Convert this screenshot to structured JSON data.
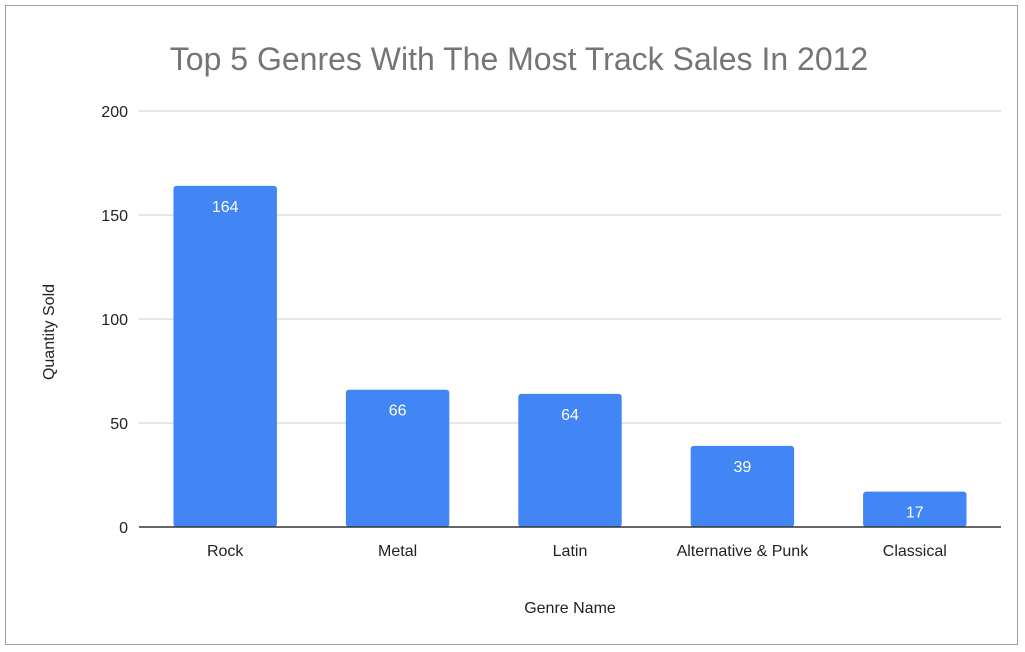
{
  "chart_data": {
    "type": "bar",
    "title": "Top 5 Genres With The Most Track Sales In 2012",
    "xlabel": "Genre Name",
    "ylabel": "Quantity Sold",
    "categories": [
      "Rock",
      "Metal",
      "Latin",
      "Alternative & Punk",
      "Classical"
    ],
    "values": [
      164,
      66,
      64,
      39,
      17
    ],
    "data_labels": [
      "164",
      "66",
      "64",
      "39",
      "17"
    ],
    "ylim": [
      0,
      200
    ],
    "yticks": [
      0,
      50,
      100,
      150,
      200
    ],
    "ytick_labels": [
      "0",
      "50",
      "100",
      "150",
      "200"
    ],
    "grid": true,
    "legend": "none",
    "colors": {
      "bar": "#4285f4",
      "grid": "#cccccc",
      "axis": "#333333",
      "title": "#757575",
      "text": "#222222",
      "data_label": "#ffffff",
      "border": "#9e9e9e"
    }
  }
}
